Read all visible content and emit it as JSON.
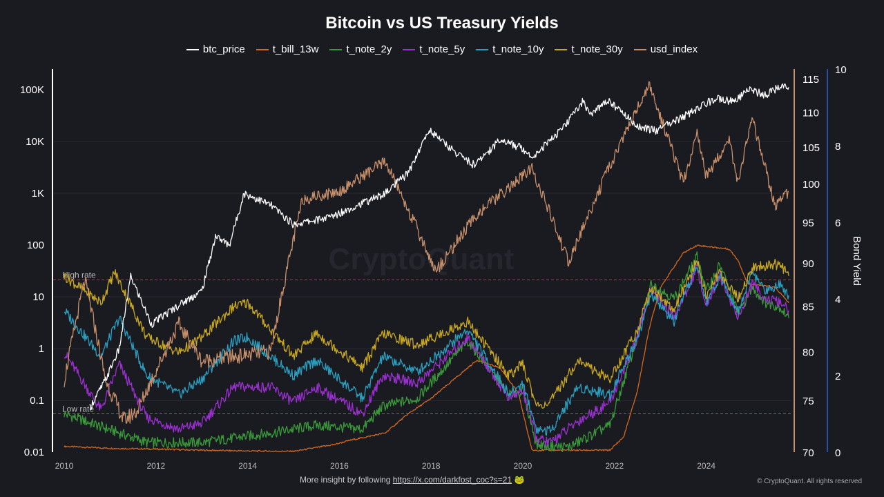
{
  "chart_data": {
    "type": "line",
    "title": "Bitcoin vs US Treasury Yields",
    "legend_position": "top-center",
    "xlabel": "",
    "x_ticks": [
      "2010",
      "2012",
      "2014",
      "2016",
      "2018",
      "2020",
      "2022",
      "2024"
    ],
    "xlim": [
      2009.9,
      2025.85
    ],
    "axes": {
      "left": {
        "label": "",
        "scale": "log",
        "ylim": [
          0.01,
          300000
        ],
        "ticks": [
          "0.01",
          "0.1",
          "1",
          "10",
          "100",
          "1K",
          "10K",
          "100K"
        ],
        "tick_values": [
          0.01,
          0.1,
          1,
          10,
          100,
          1000,
          10000,
          100000
        ]
      },
      "right_usd": {
        "label": "",
        "scale": "log",
        "ylim": [
          70,
          117
        ],
        "ticks": [
          "70",
          "75",
          "80",
          "85",
          "90",
          "95",
          "100",
          "105",
          "110",
          "115"
        ]
      },
      "right_yield": {
        "label": "Bond Yield",
        "scale": "linear",
        "ylim": [
          0,
          10
        ],
        "ticks": [
          "0",
          "2",
          "4",
          "6",
          "8",
          "10"
        ]
      }
    },
    "thresholds": [
      {
        "label": "High rate",
        "value": 4.5,
        "axis": "right_yield",
        "color": "#c0392b"
      },
      {
        "label": "Low rate",
        "value": 1.0,
        "axis": "right_yield",
        "color": "#2e9e3e"
      }
    ],
    "series": [
      {
        "name": "t_bill_13w",
        "axis": "right_yield",
        "color": "#d2691e",
        "x": [
          2010,
          2011,
          2012,
          2013,
          2014,
          2015,
          2015.9,
          2016.2,
          2017,
          2017.5,
          2018,
          2018.5,
          2019,
          2019.5,
          2019.9,
          2020.2,
          2021,
          2021.9,
          2022.2,
          2022.5,
          2022.75,
          2023,
          2023.5,
          2023.8,
          2024.5,
          2024.7,
          2024.9,
          2025.5,
          2025.8
        ],
        "y": [
          0.15,
          0.1,
          0.08,
          0.05,
          0.03,
          0.02,
          0.2,
          0.3,
          0.5,
          1.0,
          1.4,
          1.9,
          2.4,
          2.2,
          1.55,
          0.05,
          0.05,
          0.05,
          0.4,
          1.6,
          3.2,
          4.3,
          5.2,
          5.4,
          5.3,
          5.0,
          4.4,
          4.3,
          3.9
        ]
      },
      {
        "name": "t_note_2y",
        "axis": "right_yield",
        "color": "#3a9a3a",
        "x": [
          2010,
          2011.8,
          2013,
          2014.5,
          2015.5,
          2016.5,
          2016.95,
          2017.7,
          2018.8,
          2019.7,
          2020,
          2020.3,
          2021,
          2021.9,
          2022.5,
          2022.8,
          2023.3,
          2023.8,
          2024,
          2024.3,
          2024.7,
          2025,
          2025.3,
          2025.6,
          2025.8
        ],
        "y": [
          1.0,
          0.25,
          0.25,
          0.5,
          0.7,
          0.6,
          1.2,
          1.4,
          2.9,
          1.5,
          1.6,
          0.2,
          0.13,
          0.7,
          3.0,
          4.4,
          4.0,
          5.1,
          4.2,
          4.9,
          3.6,
          4.3,
          3.9,
          3.8,
          3.5
        ]
      },
      {
        "name": "t_note_5y",
        "axis": "right_yield",
        "color": "#9b30d0",
        "x": [
          2010,
          2010.8,
          2011.2,
          2011.8,
          2012.5,
          2013,
          2013.7,
          2014.5,
          2015,
          2015.5,
          2016.5,
          2016.95,
          2017.7,
          2018.8,
          2019.7,
          2020,
          2020.3,
          2020.6,
          2021.2,
          2021.9,
          2022.5,
          2022.8,
          2023.3,
          2023.8,
          2024,
          2024.3,
          2024.7,
          2025,
          2025.3,
          2025.6,
          2025.8
        ],
        "y": [
          2.6,
          1.1,
          2.3,
          0.9,
          0.6,
          0.75,
          1.7,
          1.7,
          1.3,
          1.7,
          1.0,
          2.0,
          1.8,
          3.0,
          1.4,
          1.6,
          0.35,
          0.25,
          0.8,
          1.3,
          3.0,
          4.3,
          3.5,
          4.8,
          3.8,
          4.6,
          3.5,
          4.4,
          4.0,
          3.9,
          3.7
        ]
      },
      {
        "name": "t_note_10y",
        "axis": "right_yield",
        "color": "#2a9fc0",
        "x": [
          2010,
          2010.8,
          2011.2,
          2011.8,
          2012.5,
          2013,
          2013.7,
          2014,
          2015,
          2015.5,
          2016.5,
          2016.95,
          2017.7,
          2018.8,
          2019.7,
          2020,
          2020.3,
          2020.6,
          2021.2,
          2021.9,
          2022.5,
          2022.8,
          2023.3,
          2023.8,
          2024,
          2024.3,
          2024.7,
          2025,
          2025.3,
          2025.6,
          2025.8
        ],
        "y": [
          3.7,
          2.5,
          3.5,
          2.0,
          1.5,
          1.9,
          2.9,
          3.0,
          2.0,
          2.4,
          1.4,
          2.5,
          2.1,
          3.2,
          1.5,
          1.8,
          0.6,
          0.55,
          1.7,
          1.5,
          3.0,
          4.1,
          3.4,
          4.9,
          3.9,
          4.6,
          3.7,
          4.7,
          4.2,
          4.4,
          4.1
        ]
      },
      {
        "name": "t_note_30y",
        "axis": "right_yield",
        "color": "#c8a820",
        "x": [
          2010,
          2010.8,
          2011.1,
          2011.8,
          2012.5,
          2013,
          2013.7,
          2014,
          2015,
          2015.5,
          2016.5,
          2016.95,
          2017.7,
          2018.8,
          2019.7,
          2020,
          2020.3,
          2020.6,
          2021.2,
          2021.9,
          2022.5,
          2022.8,
          2023.3,
          2023.8,
          2024,
          2024.3,
          2024.7,
          2025,
          2025.4,
          2025.6,
          2025.8
        ],
        "y": [
          4.6,
          3.9,
          4.7,
          3.0,
          2.6,
          3.0,
          3.8,
          3.9,
          2.5,
          3.1,
          2.2,
          3.1,
          2.8,
          3.4,
          2.0,
          2.3,
          1.2,
          1.3,
          2.4,
          1.9,
          3.2,
          4.3,
          3.7,
          5.0,
          4.1,
          4.7,
          4.0,
          4.8,
          4.9,
          4.9,
          4.6
        ]
      },
      {
        "name": "usd_index",
        "axis": "right_usd",
        "color": "#c8906a",
        "x": [
          2010,
          2010.45,
          2010.9,
          2011.3,
          2011.6,
          2012.5,
          2013,
          2014.5,
          2015.2,
          2016,
          2017,
          2018.1,
          2019,
          2020.2,
          2021,
          2022.75,
          2023.5,
          2023.8,
          2024,
          2024.5,
          2024.7,
          2025,
          2025.5,
          2025.8
        ],
        "y": [
          77,
          88,
          77,
          73,
          74,
          83,
          79,
          80,
          98,
          99,
          103,
          89,
          96,
          102,
          90,
          114,
          100,
          107,
          101,
          106,
          100,
          109,
          97,
          99
        ]
      },
      {
        "name": "btc_price",
        "axis": "left",
        "color": "#ffffff",
        "x": [
          2010.55,
          2010.9,
          2011.2,
          2011.45,
          2011.9,
          2012.5,
          2013,
          2013.3,
          2013.6,
          2013.92,
          2014.5,
          2015,
          2015.8,
          2016.5,
          2017,
          2017.5,
          2017.96,
          2018.5,
          2018.95,
          2019.5,
          2020,
          2020.2,
          2020.9,
          2021.3,
          2021.5,
          2021.85,
          2022.5,
          2022.9,
          2023.5,
          2024.2,
          2024.6,
          2024.95,
          2025.3,
          2025.6,
          2025.8
        ],
        "y": [
          0.07,
          0.25,
          1,
          25,
          3,
          7,
          13,
          150,
          100,
          1000,
          600,
          250,
          350,
          650,
          1000,
          2500,
          17000,
          6500,
          3500,
          11000,
          7500,
          5000,
          19000,
          60000,
          33000,
          65000,
          20000,
          16500,
          30000,
          70000,
          60000,
          100000,
          80000,
          118000,
          112000
        ]
      }
    ]
  },
  "watermark": "CryptoQuant",
  "footer": {
    "text": "More insight by following ",
    "link": "https://x.com/darkfost_coc?s=21",
    "copyright": "© CryptoQuant. All rights reserved"
  }
}
